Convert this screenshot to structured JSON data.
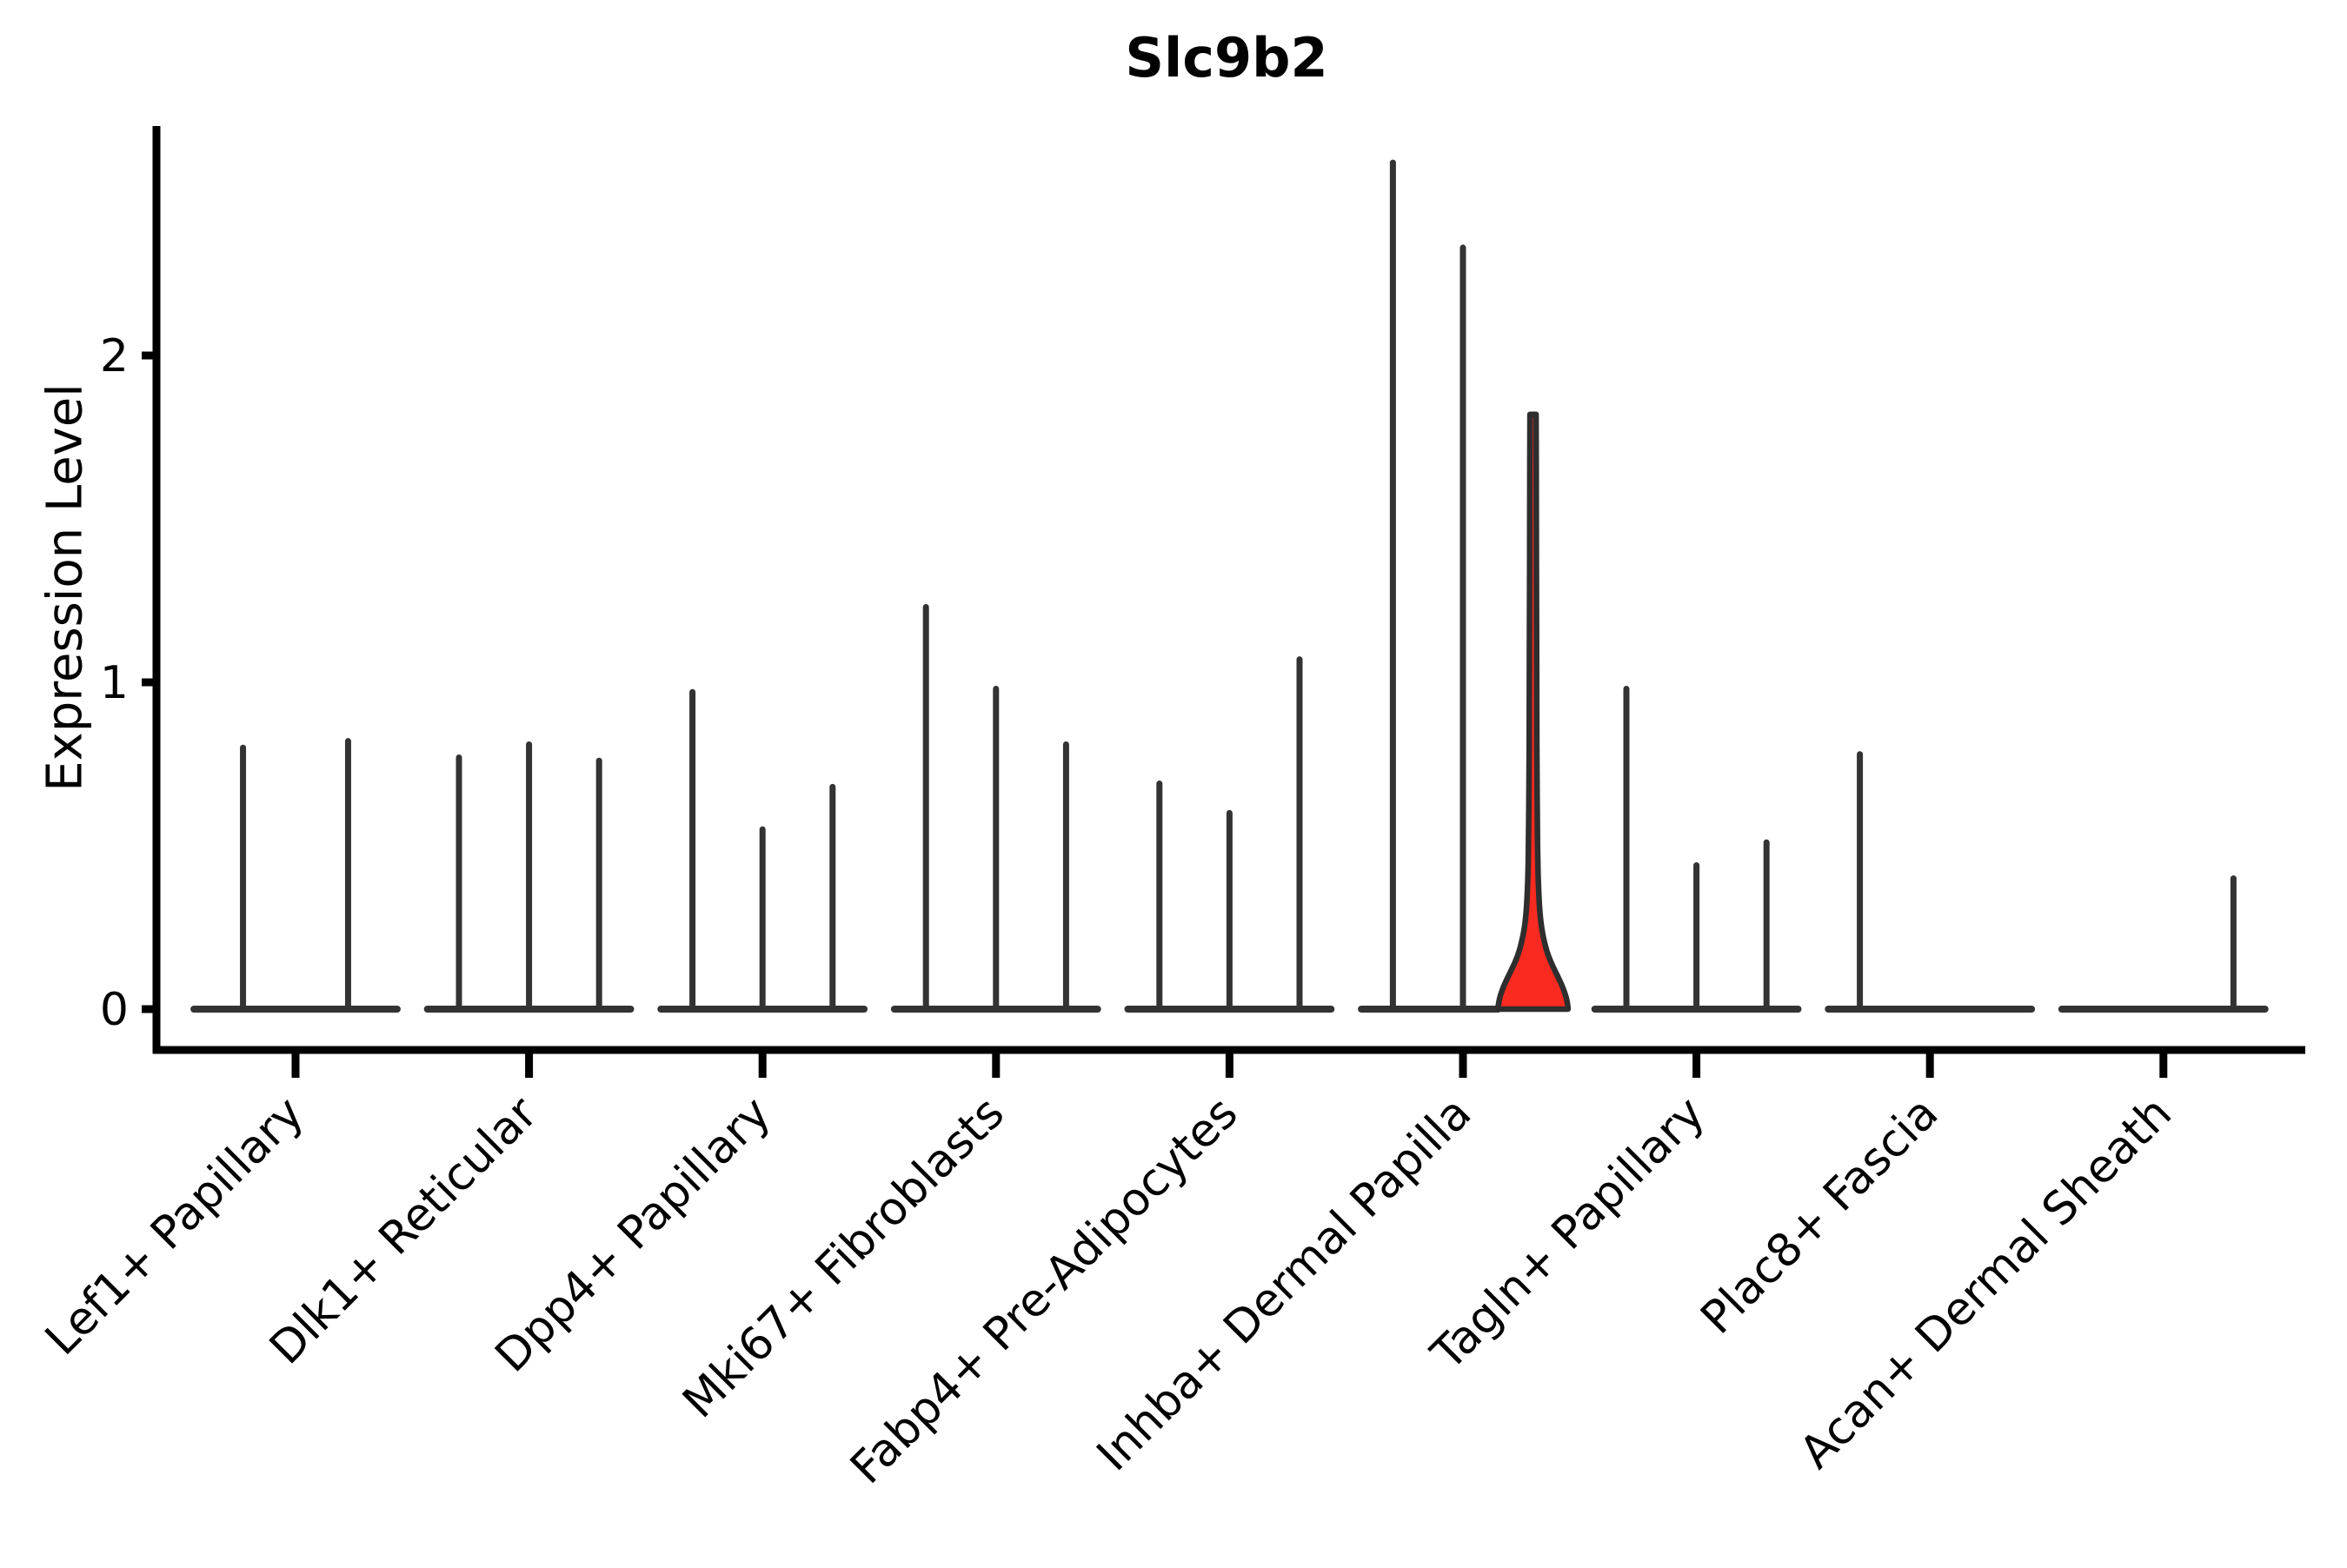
{
  "chart_data": {
    "type": "violin",
    "title": "Slc9b2",
    "ylabel": "Expression Level",
    "yticks": [
      0,
      1,
      2
    ],
    "ylim": [
      -0.125,
      2.7
    ],
    "grid": false,
    "legend": false,
    "x_tick_rotation_deg": 45,
    "colors": {
      "axis": "#000000",
      "violin_stroke": "#333333",
      "highlight_fill": "#F92A20",
      "highlight_stroke": "#2e2e2e",
      "background": "#ffffff"
    },
    "categories": [
      "Lef1+ Papillary",
      "Dlk1+ Reticular",
      "Dpp4+ Papillary",
      "Mki67+ Fibroblasts",
      "Fabp4+ Pre-Adipocytes",
      "Inhba+ Dermal Papilla",
      "Tagln+ Papillary",
      "Plac8+ Fascia",
      "Acan+ Dermal Sheath"
    ],
    "groups": [
      {
        "label": "Lef1+ Papillary",
        "violin_max": [
          0.8,
          0.82
        ]
      },
      {
        "label": "Dlk1+ Reticular",
        "violin_max": [
          0.77,
          0.81,
          0.76
        ]
      },
      {
        "label": "Dpp4+ Papillary",
        "violin_max": [
          0.97,
          0.55,
          0.68
        ]
      },
      {
        "label": "Mki67+ Fibroblasts",
        "violin_max": [
          1.23,
          0.98,
          0.81
        ]
      },
      {
        "label": "Fabp4+ Pre-Adipocytes",
        "violin_max": [
          0.69,
          0.6,
          1.07
        ]
      },
      {
        "label": "Inhba+ Dermal Papilla",
        "violin_max": [
          2.59,
          2.33,
          1.82
        ]
      },
      {
        "label": "Tagln+ Papillary",
        "violin_max": [
          0.98,
          0.44,
          0.51
        ]
      },
      {
        "label": "Plac8+ Fascia",
        "violin_max": [
          0.78,
          0.0,
          0.0
        ]
      },
      {
        "label": "Acan+ Dermal Sheath",
        "violin_max": [
          0.0,
          0.0,
          0.4
        ]
      }
    ],
    "highlight": {
      "group_index": 5,
      "violin_index": 2,
      "max_expression": 1.82,
      "body_profile": [
        [
          1.82,
          3.5
        ],
        [
          1.5,
          3.8
        ],
        [
          1.2,
          4.0
        ],
        [
          0.9,
          4.3
        ],
        [
          0.7,
          4.6
        ],
        [
          0.55,
          5.0
        ],
        [
          0.45,
          5.5
        ],
        [
          0.38,
          6.2
        ],
        [
          0.32,
          7.2
        ],
        [
          0.27,
          8.8
        ],
        [
          0.23,
          11.0
        ],
        [
          0.19,
          14.5
        ],
        [
          0.16,
          18.0
        ],
        [
          0.13,
          23.0
        ],
        [
          0.1,
          28.5
        ],
        [
          0.075,
          33.0
        ],
        [
          0.05,
          36.5
        ],
        [
          0.03,
          38.8
        ],
        [
          0.01,
          40.0
        ],
        [
          0.0,
          40.3
        ]
      ]
    }
  }
}
